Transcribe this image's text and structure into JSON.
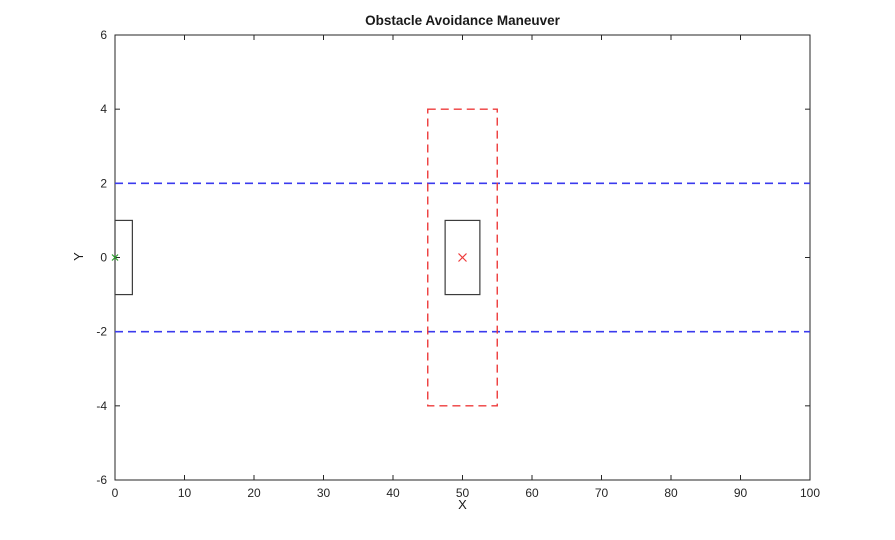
{
  "figure": {
    "background": "#ffffff"
  },
  "chart_data": {
    "type": "line",
    "title": "Obstacle Avoidance Maneuver",
    "xlabel": "X",
    "ylabel": "Y",
    "xlim": [
      0,
      100
    ],
    "ylim": [
      -6,
      6
    ],
    "xticks": [
      0,
      10,
      20,
      30,
      40,
      50,
      60,
      70,
      80,
      90,
      100
    ],
    "yticks": [
      -6,
      -4,
      -2,
      0,
      2,
      4,
      6
    ],
    "grid": false,
    "legend": null,
    "axes_color": "#262626",
    "elements": [
      {
        "name": "lane-boundary-upper",
        "kind": "hline",
        "y": 2,
        "color": "#3b3bee",
        "style": "dashed",
        "width": 1.6
      },
      {
        "name": "lane-boundary-lower",
        "kind": "hline",
        "y": -2,
        "color": "#3b3bee",
        "style": "dashed",
        "width": 1.6
      },
      {
        "name": "obstacle-safety-zone",
        "kind": "rect",
        "x0": 45,
        "x1": 55,
        "y0": -4,
        "y1": 4,
        "color": "#ee3b3b",
        "style": "dashed",
        "width": 1.4
      },
      {
        "name": "obstacle-vehicle",
        "kind": "rect",
        "x0": 47.5,
        "x1": 52.5,
        "y0": -1,
        "y1": 1,
        "color": "#3c3c3c",
        "style": "solid",
        "width": 1.2
      },
      {
        "name": "ego-vehicle",
        "kind": "rect",
        "x0": 0,
        "x1": 2.5,
        "y0": -1,
        "y1": 1,
        "color": "#3c3c3c",
        "style": "solid",
        "width": 1.2
      },
      {
        "name": "obstacle-center-marker",
        "kind": "marker",
        "x": 50,
        "y": 0,
        "marker": "x",
        "color": "#ee3b3b",
        "size": 4
      },
      {
        "name": "ego-position-marker",
        "kind": "marker",
        "x": 0,
        "y": 0,
        "marker": "x",
        "color": "#2ca02c",
        "size": 3
      }
    ]
  }
}
